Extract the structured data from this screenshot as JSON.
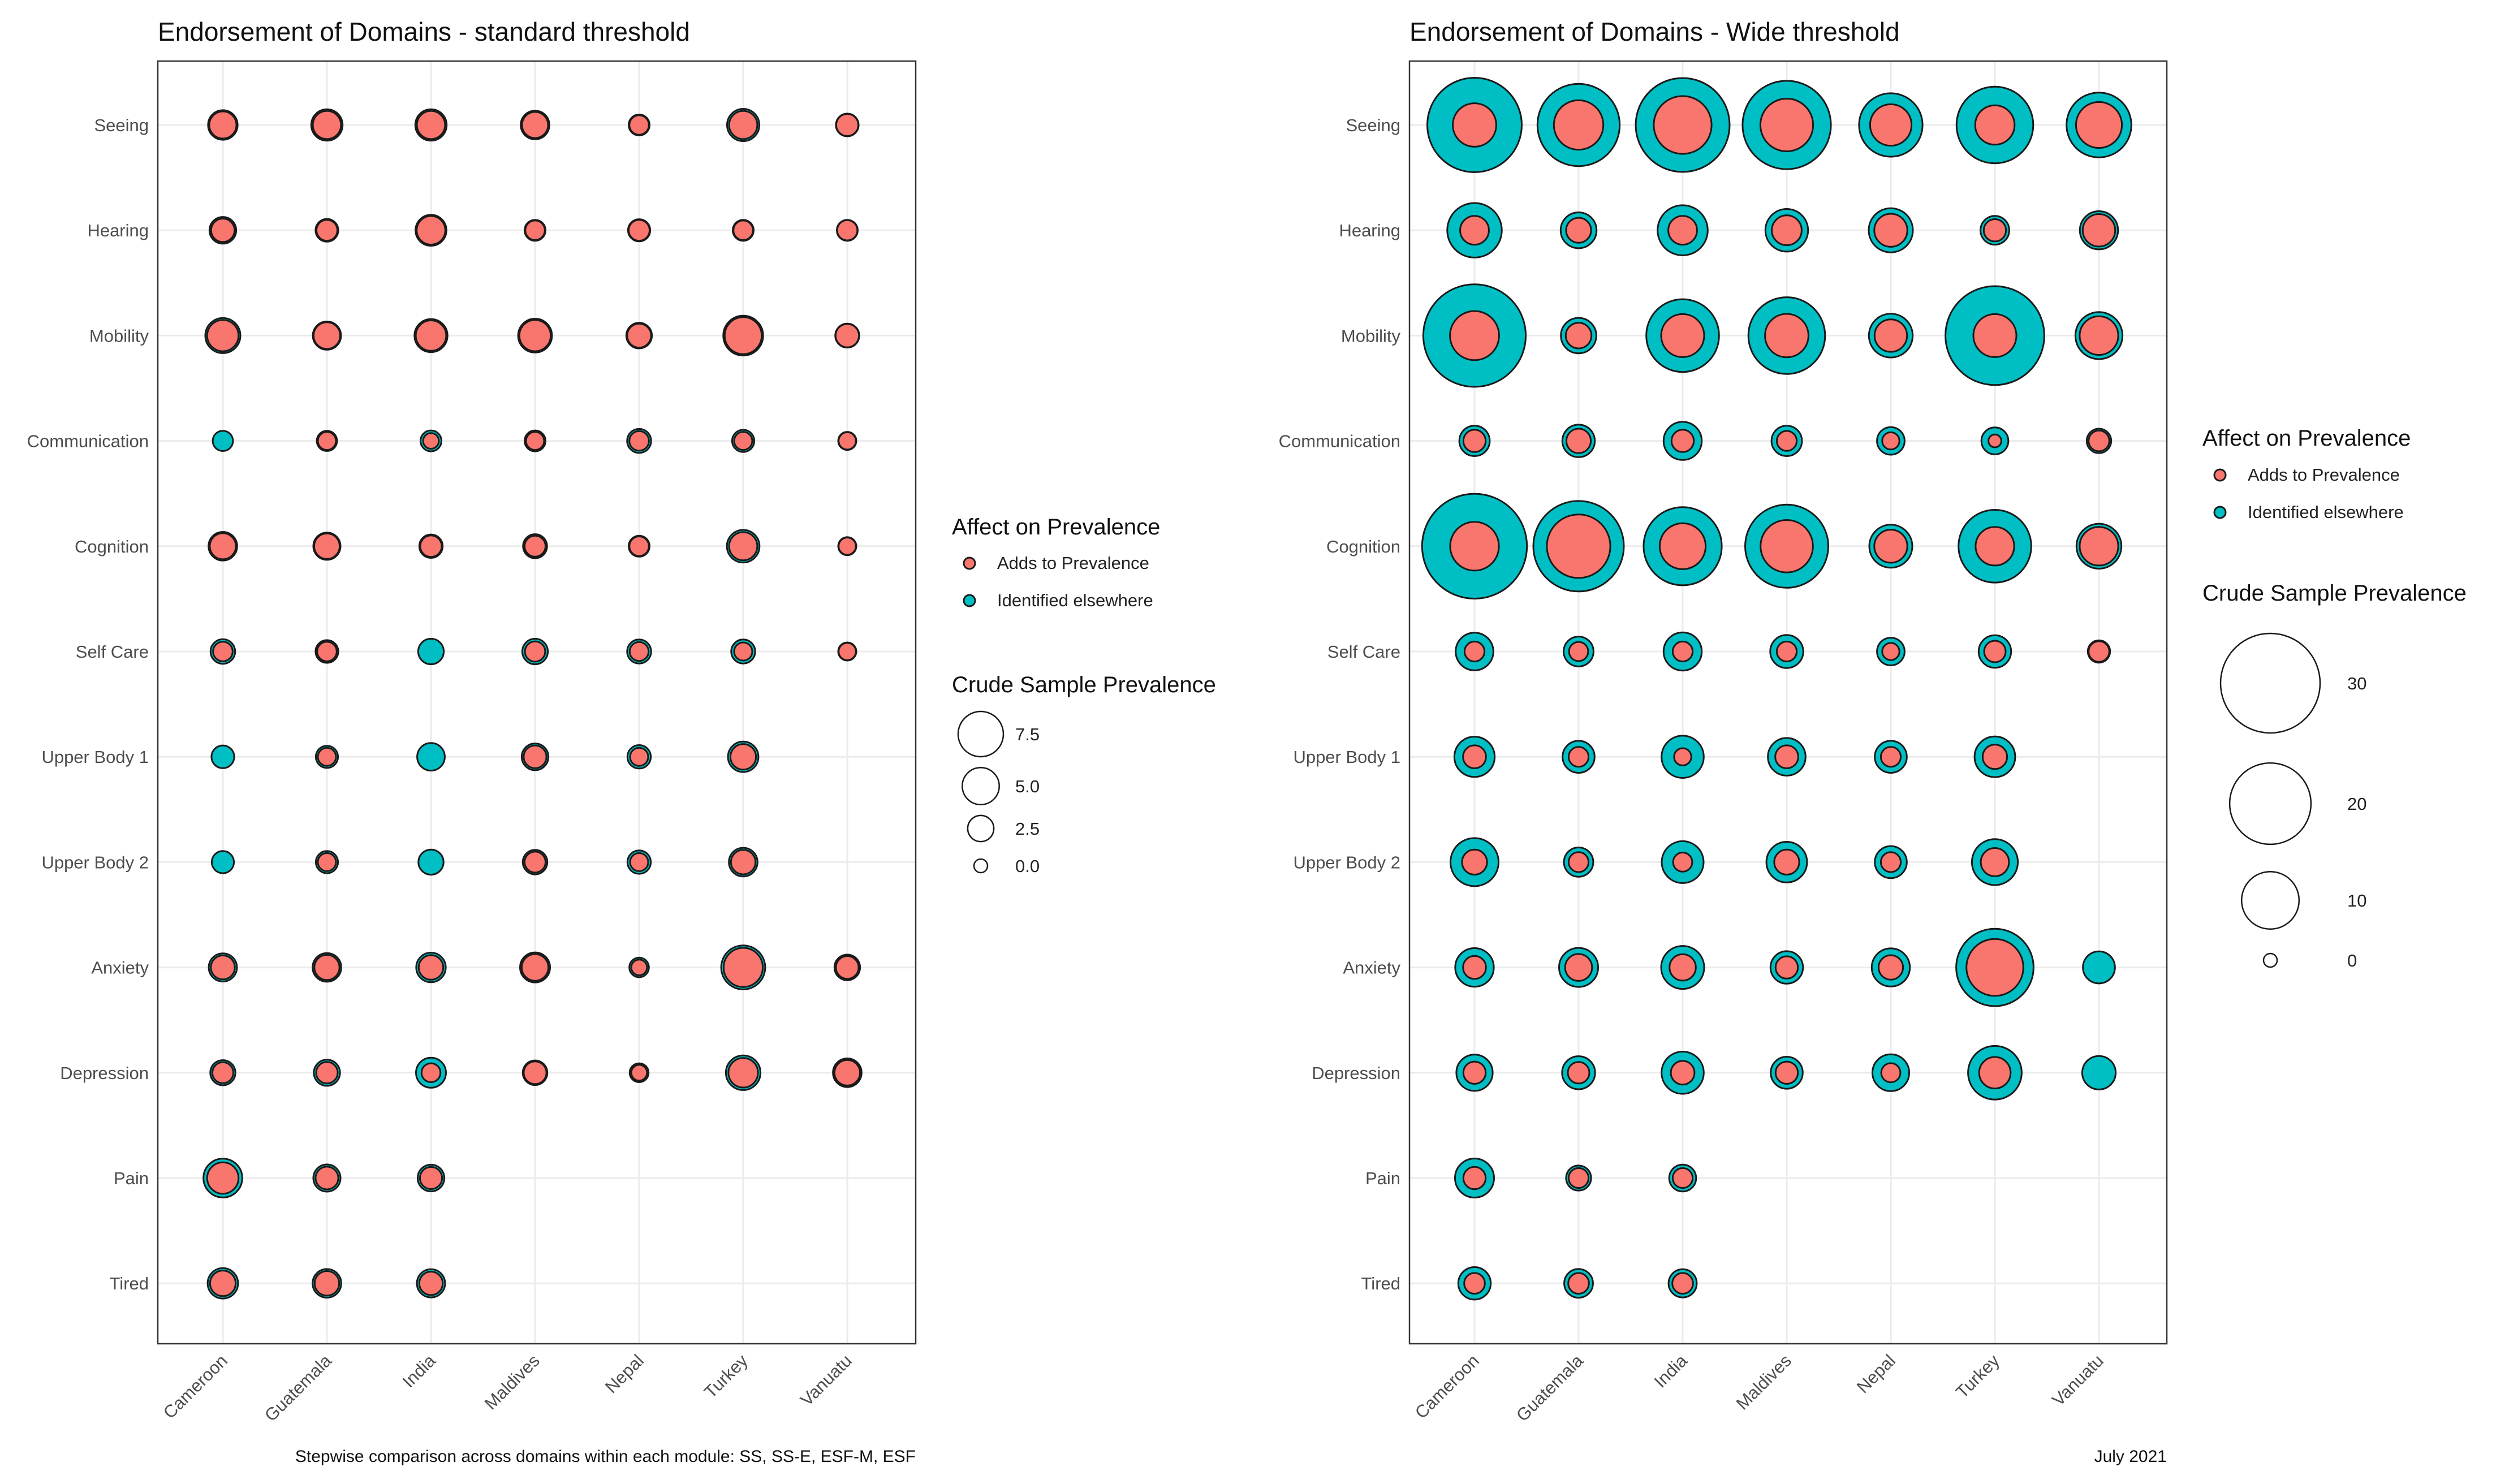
{
  "figure": {
    "caption_left": "Stepwise comparison across domains within each module: SS, SS-E, ESF-M, ESF",
    "caption_right": "July 2021"
  },
  "chart_data": [
    {
      "type": "bubble-grid",
      "title": "Endorsement of Domains - standard threshold",
      "categories_x": [
        "Cameroon",
        "Guatemala",
        "India",
        "Maldives",
        "Nepal",
        "Turkey",
        "Vanuatu"
      ],
      "categories_y": [
        "Seeing",
        "Hearing",
        "Mobility",
        "Communication",
        "Cognition",
        "Self Care",
        "Upper Body 1",
        "Upper Body 2",
        "Anxiety",
        "Depression",
        "Pain",
        "Tired"
      ],
      "size_max": 7.5,
      "legend_fill_title": "Affect on Prevalence",
      "legend_fill_items": [
        {
          "label": "Adds to Prevalence",
          "color": "#F8766D"
        },
        {
          "label": "Identified elsewhere",
          "color": "#00BFC4"
        }
      ],
      "legend_size_title": "Crude Sample Prevalence",
      "legend_size_values": [
        7.5,
        5.0,
        2.5,
        0.0
      ],
      "legend_size_labels": [
        "7.5",
        "5.0",
        "2.5",
        "0.0"
      ],
      "series": [
        {
          "name": "Identified elsewhere",
          "color": "#00BFC4",
          "values": [
            [
              3.2,
              3.6,
              3.6,
              3.0,
              1.6,
              3.8,
              1.9
            ],
            [
              2.6,
              1.9,
              3.5,
              1.6,
              1.8,
              1.6,
              1.6
            ],
            [
              4.5,
              2.9,
              4.0,
              4.2,
              2.4,
              5.8,
              2.1
            ],
            [
              1.5,
              1.5,
              1.6,
              1.6,
              2.1,
              1.8,
              1.2
            ],
            [
              3.0,
              2.7,
              2.0,
              2.1,
              1.6,
              3.9,
              1.2
            ],
            [
              2.2,
              1.9,
              2.4,
              2.4,
              2.1,
              2.1,
              1.2
            ],
            [
              1.9,
              1.8,
              2.8,
              2.6,
              2.0,
              3.4,
              null
            ],
            [
              1.8,
              1.8,
              2.3,
              2.2,
              2.0,
              3.0,
              null
            ],
            [
              2.9,
              3.0,
              3.2,
              3.3,
              1.4,
              7.1,
              2.4
            ],
            [
              2.3,
              2.5,
              3.3,
              2.2,
              1.3,
              4.4,
              3.0
            ],
            [
              5.5,
              2.7,
              2.6,
              null,
              null,
              null,
              null
            ],
            [
              3.4,
              3.0,
              2.9,
              null,
              null,
              null,
              null
            ]
          ]
        },
        {
          "name": "Adds to Prevalence",
          "color": "#F8766D",
          "values": [
            [
              2.7,
              2.9,
              2.9,
              2.5,
              1.4,
              2.9,
              1.8
            ],
            [
              2.0,
              1.6,
              3.0,
              1.4,
              1.6,
              1.4,
              1.5
            ],
            [
              3.6,
              2.6,
              3.4,
              3.6,
              2.1,
              5.0,
              2.0
            ],
            [
              0,
              1.2,
              0.9,
              1.2,
              1.4,
              1.2,
              1.1
            ],
            [
              2.5,
              2.4,
              1.7,
              1.6,
              1.4,
              2.9,
              1.1
            ],
            [
              1.4,
              1.4,
              0,
              1.5,
              1.3,
              1.2,
              1.1
            ],
            [
              0,
              1.2,
              0,
              1.9,
              1.2,
              2.4,
              null
            ],
            [
              0,
              1.2,
              0,
              1.6,
              1.2,
              2.2,
              null
            ],
            [
              2.1,
              2.3,
              2.2,
              2.6,
              0.9,
              5.6,
              1.9
            ],
            [
              1.6,
              1.7,
              1.3,
              1.9,
              0.9,
              3.2,
              2.4
            ],
            [
              3.6,
              1.9,
              1.8,
              null,
              null,
              null,
              null
            ],
            [
              2.4,
              2.2,
              2.0,
              null,
              null,
              null,
              null
            ]
          ]
        }
      ]
    },
    {
      "type": "bubble-grid",
      "title": "Endorsement of Domains - Wide threshold",
      "categories_x": [
        "Cameroon",
        "Guatemala",
        "India",
        "Maldives",
        "Nepal",
        "Turkey",
        "Vanuatu"
      ],
      "categories_y": [
        "Seeing",
        "Hearing",
        "Mobility",
        "Communication",
        "Cognition",
        "Self Care",
        "Upper Body 1",
        "Upper Body 2",
        "Anxiety",
        "Depression",
        "Pain",
        "Tired"
      ],
      "size_max": 30,
      "legend_fill_title": "Affect on Prevalence",
      "legend_fill_items": [
        {
          "label": "Adds to Prevalence",
          "color": "#F8766D"
        },
        {
          "label": "Identified elsewhere",
          "color": "#00BFC4"
        }
      ],
      "legend_size_title": "Crude Sample Prevalence",
      "legend_size_values": [
        30,
        20,
        10,
        0
      ],
      "legend_size_labels": [
        "30",
        "20",
        "10",
        "0"
      ],
      "series": [
        {
          "name": "Identified elsewhere",
          "color": "#00BFC4",
          "values": [
            [
              27.0,
              20.5,
              26.7,
              23.6,
              12.2,
              17.8,
              12.7
            ],
            [
              9.0,
              3.9,
              7.6,
              5.5,
              5.9,
              2.5,
              4.4
            ],
            [
              31.8,
              3.8,
              16.0,
              17.8,
              5.8,
              29.6,
              6.7
            ],
            [
              2.8,
              3.2,
              4.4,
              2.8,
              2.3,
              2.2,
              1.8
            ],
            [
              33.3,
              24.8,
              18.5,
              20.9,
              5.6,
              16.0,
              6.1
            ],
            [
              4.3,
              2.7,
              4.4,
              3.3,
              2.3,
              3.2,
              1.5
            ],
            [
              4.9,
              3.1,
              5.4,
              4.3,
              3.1,
              5.0,
              null
            ],
            [
              7.0,
              2.6,
              5.3,
              5.0,
              3.1,
              6.4,
              null
            ],
            [
              4.5,
              4.6,
              5.6,
              3.2,
              4.4,
              18.1,
              3.1
            ],
            [
              4.0,
              3.3,
              5.4,
              3.1,
              4.1,
              8.7,
              3.4
            ],
            [
              4.6,
              1.9,
              2.2,
              null,
              null,
              null,
              null
            ],
            [
              3.2,
              2.5,
              2.4,
              null,
              null,
              null,
              null
            ]
          ]
        },
        {
          "name": "Adds to Prevalence",
          "color": "#F8766D",
          "values": [
            [
              5.7,
              7.4,
              10.1,
              8.4,
              5.2,
              4.7,
              6.4
            ],
            [
              2.5,
              1.9,
              2.5,
              2.7,
              3.3,
              1.5,
              3.2
            ],
            [
              7.3,
              2.0,
              5.6,
              5.7,
              3.2,
              5.6,
              4.5
            ],
            [
              1.5,
              1.8,
              1.5,
              1.2,
              0.9,
              0.5,
              1.3
            ],
            [
              7.2,
              12.2,
              6.4,
              8.3,
              3.3,
              4.5,
              4.5
            ],
            [
              1.2,
              1.1,
              1.2,
              1.2,
              0.9,
              1.4,
              1.3
            ],
            [
              1.6,
              1.2,
              0.9,
              1.6,
              1.2,
              1.8,
              null
            ],
            [
              1.9,
              1.2,
              1.1,
              1.9,
              1.2,
              2.4,
              null
            ],
            [
              1.6,
              2.2,
              2.1,
              1.5,
              1.8,
              9.8,
              0
            ],
            [
              1.5,
              1.4,
              1.7,
              1.5,
              1.1,
              3.0,
              0
            ],
            [
              1.5,
              1.2,
              1.2,
              null,
              null,
              null,
              null
            ],
            [
              1.3,
              1.3,
              1.3,
              null,
              null,
              null,
              null
            ]
          ]
        }
      ]
    }
  ]
}
